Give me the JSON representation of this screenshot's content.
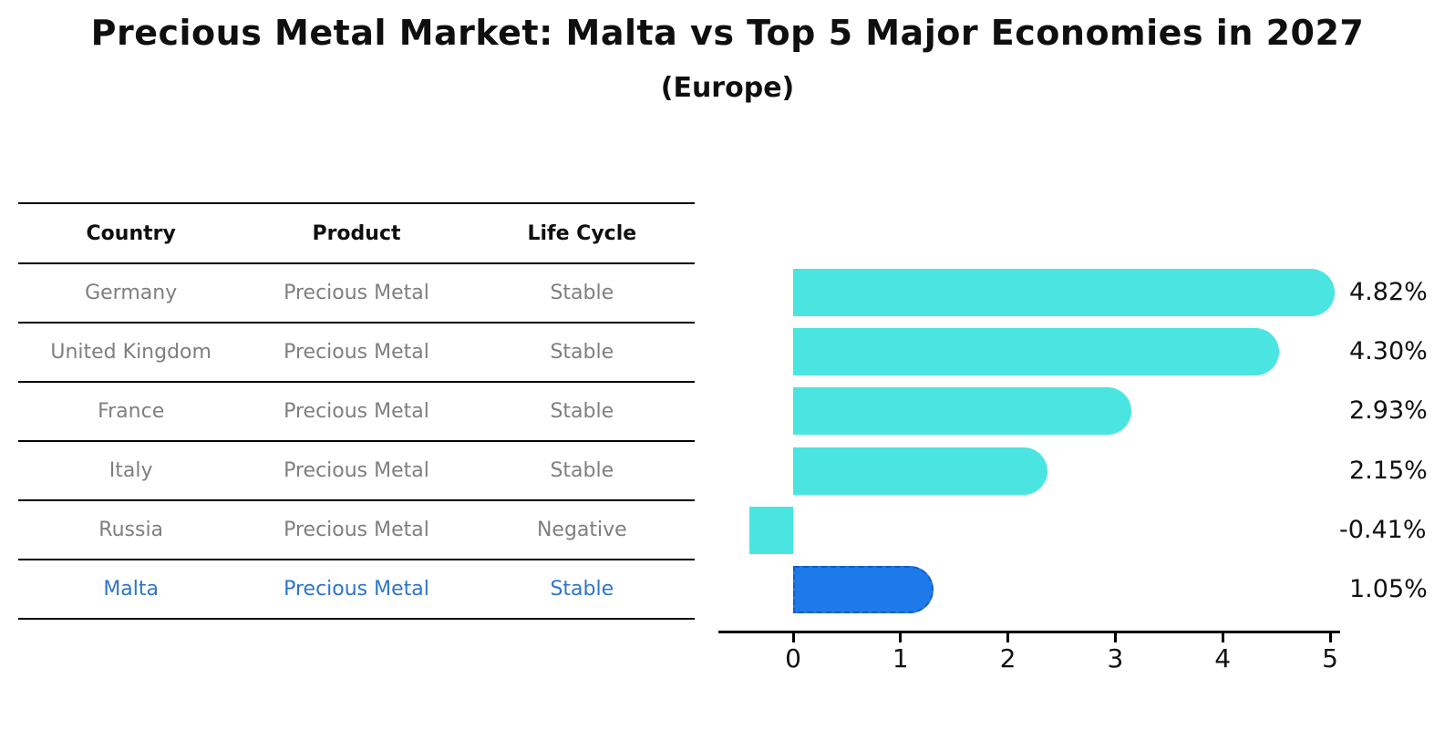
{
  "title": "Precious Metal Market: Malta vs Top 5 Major Economies in 2027",
  "subtitle": "(Europe)",
  "table": {
    "headers": [
      "Country",
      "Product",
      "Life Cycle"
    ],
    "rows": [
      {
        "country": "Germany",
        "product": "Precious Metal",
        "life_cycle": "Stable",
        "highlight": false
      },
      {
        "country": "United Kingdom",
        "product": "Precious Metal",
        "life_cycle": "Stable",
        "highlight": false
      },
      {
        "country": "France",
        "product": "Precious Metal",
        "life_cycle": "Stable",
        "highlight": false
      },
      {
        "country": "Italy",
        "product": "Precious Metal",
        "life_cycle": "Stable",
        "highlight": false
      },
      {
        "country": "Russia",
        "product": "Precious Metal",
        "life_cycle": "Negative",
        "highlight": false
      },
      {
        "country": "Malta",
        "product": "Precious Metal",
        "life_cycle": "Stable",
        "highlight": true
      }
    ]
  },
  "chart_data": {
    "type": "bar",
    "orientation": "horizontal",
    "categories": [
      "Germany",
      "United Kingdom",
      "France",
      "Italy",
      "Russia",
      "Malta"
    ],
    "values": [
      4.82,
      4.3,
      2.93,
      2.15,
      -0.41,
      1.05
    ],
    "labels": [
      "4.82%",
      "4.30%",
      "2.93%",
      "2.15%",
      "-0.41%",
      "1.05%"
    ],
    "xticks": [
      0,
      1,
      2,
      3,
      4,
      5
    ],
    "xtick_labels": [
      "0",
      "1",
      "2",
      "3",
      "4",
      "5"
    ],
    "xlim": [
      -0.7,
      5.1
    ],
    "grid": false,
    "legend": "none",
    "bar_color": "#4ae5e0",
    "highlight_color": "#1e7ae8",
    "highlight_border_color": "#0f5ec4",
    "highlight_index": 5,
    "highlight_category": "Malta"
  },
  "colors": {
    "title_text": "#0f0f0f",
    "table_text": "#7f7f7f",
    "table_line": "#000000",
    "highlight_text": "#2d76c9",
    "axis": "#000000"
  }
}
